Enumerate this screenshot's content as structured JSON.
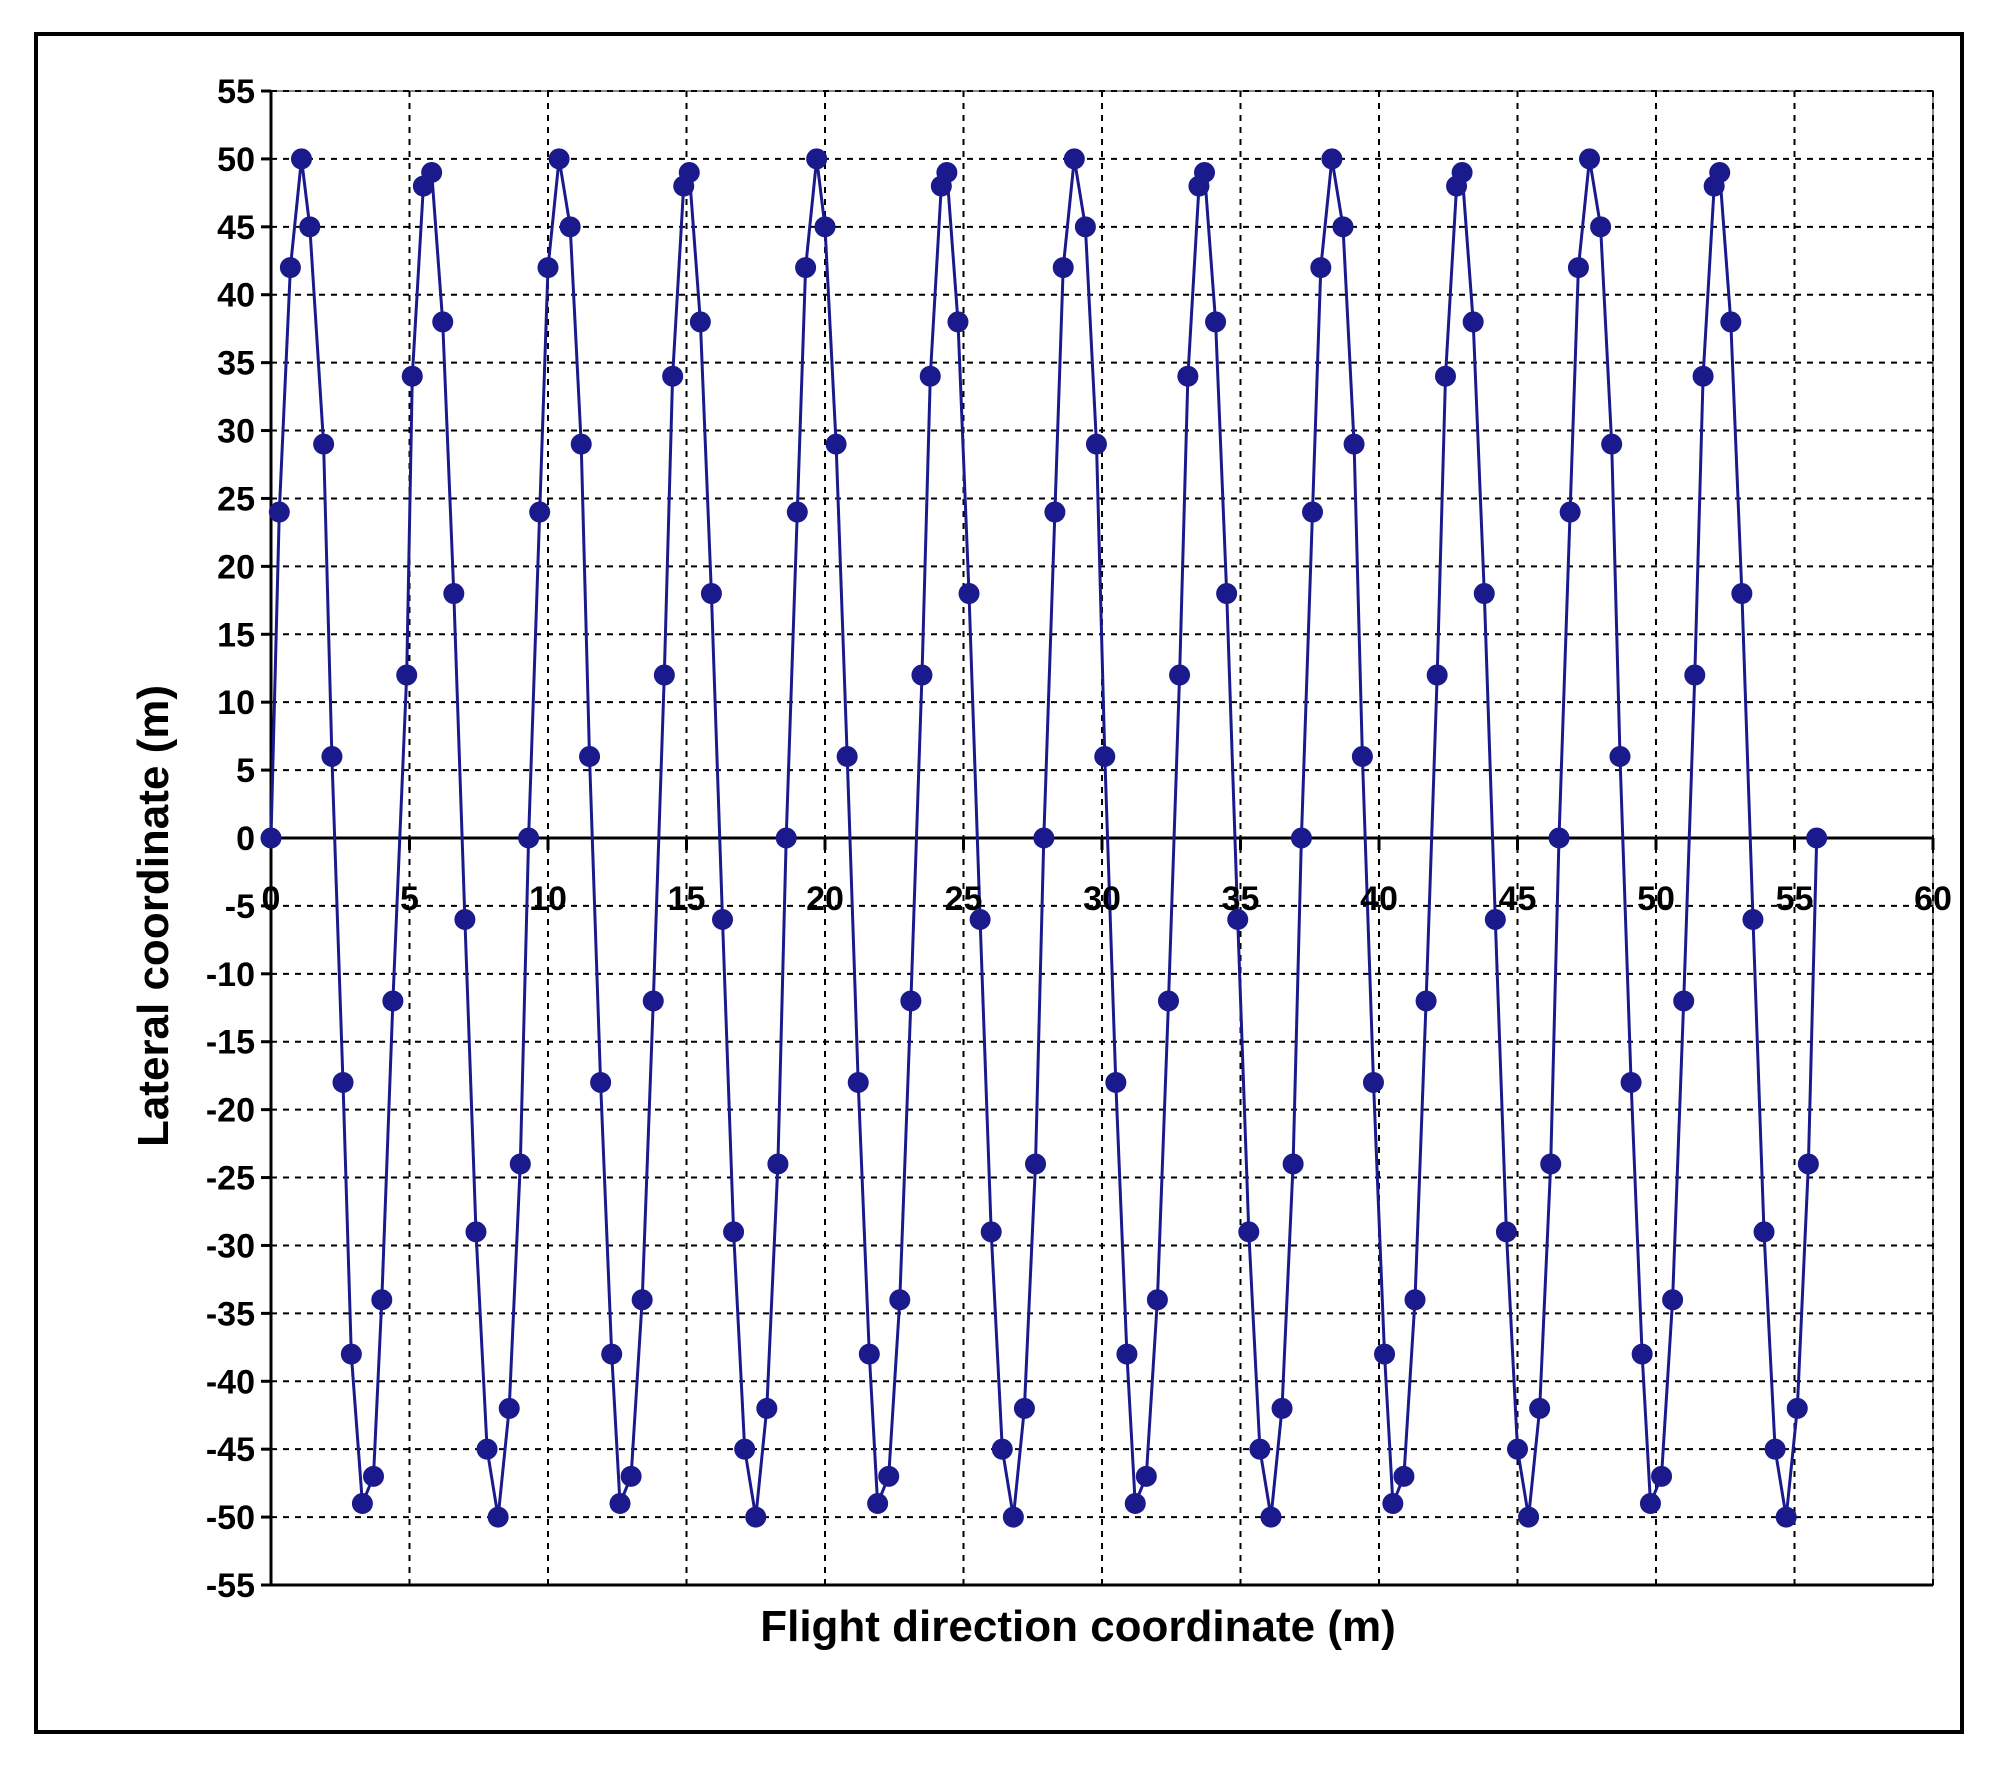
{
  "chart_data": {
    "type": "scatter",
    "xlabel": "Flight direction coordinate (m)",
    "ylabel": "Lateral coordinate (m)",
    "xlim": [
      0,
      60
    ],
    "ylim": [
      -55,
      55
    ],
    "x_ticks": [
      0,
      5,
      10,
      15,
      20,
      25,
      30,
      35,
      40,
      45,
      50,
      55,
      60
    ],
    "y_ticks": [
      55,
      50,
      45,
      40,
      35,
      30,
      25,
      20,
      15,
      10,
      5,
      0,
      -5,
      -10,
      -15,
      -20,
      -25,
      -30,
      -35,
      -40,
      -45,
      -50,
      -55
    ],
    "grid": true,
    "legend": "none",
    "line_mode": "lines+markers",
    "colors": {
      "series": "#1a1a8c",
      "axis": "#000000",
      "grid": "#000000"
    },
    "series": [
      {
        "points": [
          [
            0,
            0
          ],
          [
            0.3,
            24
          ],
          [
            0.7,
            42
          ],
          [
            1.1,
            50
          ],
          [
            1.4,
            45
          ],
          [
            1.9,
            29
          ],
          [
            2.2,
            6
          ],
          [
            2.6,
            -18
          ],
          [
            2.9,
            -38
          ],
          [
            3.3,
            -49
          ],
          [
            3.7,
            -47
          ],
          [
            4.0,
            -34
          ],
          [
            4.4,
            -12
          ],
          [
            4.9,
            12
          ],
          [
            5.1,
            34
          ],
          [
            5.5,
            48
          ],
          [
            5.8,
            49
          ],
          [
            6.2,
            38
          ],
          [
            6.6,
            18
          ],
          [
            7.0,
            -6
          ],
          [
            7.4,
            -29
          ],
          [
            7.8,
            -45
          ],
          [
            8.2,
            -50
          ],
          [
            8.6,
            -42
          ],
          [
            9.0,
            -24
          ],
          [
            9.3,
            0
          ],
          [
            9.7,
            24
          ],
          [
            10.0,
            42
          ],
          [
            10.4,
            50
          ],
          [
            10.8,
            45
          ],
          [
            11.2,
            29
          ],
          [
            11.5,
            6
          ],
          [
            11.9,
            -18
          ],
          [
            12.3,
            -38
          ],
          [
            12.6,
            -49
          ],
          [
            13.0,
            -47
          ],
          [
            13.4,
            -34
          ],
          [
            13.8,
            -12
          ],
          [
            14.2,
            12
          ],
          [
            14.5,
            34
          ],
          [
            14.9,
            48
          ],
          [
            15.1,
            49
          ],
          [
            15.5,
            38
          ],
          [
            15.9,
            18
          ],
          [
            16.3,
            -6
          ],
          [
            16.7,
            -29
          ],
          [
            17.1,
            -45
          ],
          [
            17.5,
            -50
          ],
          [
            17.9,
            -42
          ],
          [
            18.3,
            -24
          ],
          [
            18.6,
            0
          ],
          [
            19.0,
            24
          ],
          [
            19.3,
            42
          ],
          [
            19.7,
            50
          ],
          [
            20.0,
            45
          ],
          [
            20.4,
            29
          ],
          [
            20.8,
            6
          ],
          [
            21.2,
            -18
          ],
          [
            21.6,
            -38
          ],
          [
            21.9,
            -49
          ],
          [
            22.3,
            -47
          ],
          [
            22.7,
            -34
          ],
          [
            23.1,
            -12
          ],
          [
            23.5,
            12
          ],
          [
            23.8,
            34
          ],
          [
            24.2,
            48
          ],
          [
            24.4,
            49
          ],
          [
            24.8,
            38
          ],
          [
            25.2,
            18
          ],
          [
            25.6,
            -6
          ],
          [
            26.0,
            -29
          ],
          [
            26.4,
            -45
          ],
          [
            26.8,
            -50
          ],
          [
            27.2,
            -42
          ],
          [
            27.6,
            -24
          ],
          [
            27.9,
            0
          ],
          [
            28.3,
            24
          ],
          [
            28.6,
            42
          ],
          [
            29.0,
            50
          ],
          [
            29.4,
            45
          ],
          [
            29.8,
            29
          ],
          [
            30.1,
            6
          ],
          [
            30.5,
            -18
          ],
          [
            30.9,
            -38
          ],
          [
            31.2,
            -49
          ],
          [
            31.6,
            -47
          ],
          [
            32.0,
            -34
          ],
          [
            32.4,
            -12
          ],
          [
            32.8,
            12
          ],
          [
            33.1,
            34
          ],
          [
            33.5,
            48
          ],
          [
            33.7,
            49
          ],
          [
            34.1,
            38
          ],
          [
            34.5,
            18
          ],
          [
            34.9,
            -6
          ],
          [
            35.3,
            -29
          ],
          [
            35.7,
            -45
          ],
          [
            36.1,
            -50
          ],
          [
            36.5,
            -42
          ],
          [
            36.9,
            -24
          ],
          [
            37.2,
            0
          ],
          [
            37.6,
            24
          ],
          [
            37.9,
            42
          ],
          [
            38.3,
            50
          ],
          [
            38.7,
            45
          ],
          [
            39.1,
            29
          ],
          [
            39.4,
            6
          ],
          [
            39.8,
            -18
          ],
          [
            40.2,
            -38
          ],
          [
            40.5,
            -49
          ],
          [
            40.9,
            -47
          ],
          [
            41.3,
            -34
          ],
          [
            41.7,
            -12
          ],
          [
            42.1,
            12
          ],
          [
            42.4,
            34
          ],
          [
            42.8,
            48
          ],
          [
            43.0,
            49
          ],
          [
            43.4,
            38
          ],
          [
            43.8,
            18
          ],
          [
            44.2,
            -6
          ],
          [
            44.6,
            -29
          ],
          [
            45.0,
            -45
          ],
          [
            45.4,
            -50
          ],
          [
            45.8,
            -42
          ],
          [
            46.2,
            -24
          ],
          [
            46.5,
            0
          ],
          [
            46.9,
            24
          ],
          [
            47.2,
            42
          ],
          [
            47.6,
            50
          ],
          [
            48.0,
            45
          ],
          [
            48.4,
            29
          ],
          [
            48.7,
            6
          ],
          [
            49.1,
            -18
          ],
          [
            49.5,
            -38
          ],
          [
            49.8,
            -49
          ],
          [
            50.2,
            -47
          ],
          [
            50.6,
            -34
          ],
          [
            51.0,
            -12
          ],
          [
            51.4,
            12
          ],
          [
            51.7,
            34
          ],
          [
            52.1,
            48
          ],
          [
            52.3,
            49
          ],
          [
            52.7,
            38
          ],
          [
            53.1,
            18
          ],
          [
            53.5,
            -6
          ],
          [
            53.9,
            -29
          ],
          [
            54.3,
            -45
          ],
          [
            54.7,
            -50
          ],
          [
            55.1,
            -42
          ],
          [
            55.5,
            -24
          ],
          [
            55.8,
            0
          ]
        ]
      }
    ]
  }
}
